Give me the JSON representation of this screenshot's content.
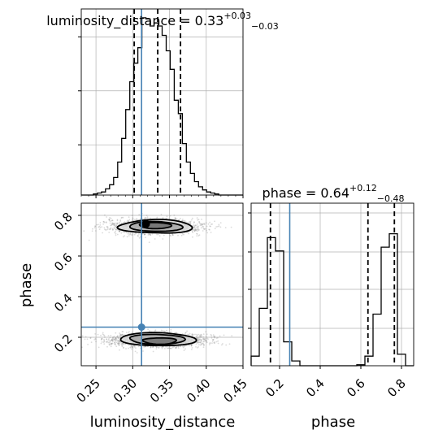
{
  "chart_data": {
    "type": "corner",
    "parameters": [
      "luminosity_distance",
      "phase"
    ],
    "truths": {
      "luminosity_distance": 0.312,
      "phase": 0.25
    },
    "grid": true,
    "panels": {
      "hist_luminosity_distance": {
        "type": "histogram",
        "title": {
          "prefix": "luminosity_distance = 0.33",
          "upper": "+0.03",
          "lower": "−0.03"
        },
        "quantiles": [
          0.302,
          0.334,
          0.365
        ],
        "xlim": [
          0.23,
          0.45
        ],
        "bin_edges": [
          0.23,
          0.2355,
          0.241,
          0.2465,
          0.252,
          0.2575,
          0.263,
          0.2685,
          0.274,
          0.2795,
          0.285,
          0.2905,
          0.296,
          0.3015,
          0.307,
          0.3125,
          0.318,
          0.3235,
          0.329,
          0.3345,
          0.34,
          0.3455,
          0.351,
          0.3565,
          0.362,
          0.3675,
          0.373,
          0.3785,
          0.384,
          0.3895,
          0.395,
          0.4005,
          0.406,
          0.4115,
          0.417,
          0.4225,
          0.428,
          0.4335,
          0.439,
          0.4445,
          0.45
        ],
        "counts": [
          0,
          0,
          0,
          1,
          2,
          3,
          6,
          10,
          17,
          32,
          55,
          83,
          110,
          128,
          143,
          172,
          171,
          164,
          167,
          164,
          155,
          140,
          122,
          92,
          79,
          50,
          32,
          21,
          13,
          8,
          5,
          3,
          2,
          1,
          0,
          0,
          0,
          0,
          0,
          0
        ]
      },
      "hist_phase": {
        "type": "histogram",
        "title": {
          "prefix": "phase = 0.64",
          "upper": "+0.12",
          "lower": "−0.48"
        },
        "quantiles": [
          0.155,
          0.635,
          0.765
        ],
        "xlim": [
          0.06,
          0.86
        ],
        "ylim_max": 170,
        "bin_edges": [
          0.06,
          0.1,
          0.14,
          0.18,
          0.22,
          0.26,
          0.3,
          0.34,
          0.38,
          0.42,
          0.46,
          0.5,
          0.54,
          0.58,
          0.62,
          0.66,
          0.7,
          0.74,
          0.78,
          0.82,
          0.86
        ],
        "counts": [
          10,
          60,
          134,
          120,
          25,
          5,
          0,
          0,
          0,
          0,
          0,
          0,
          0,
          1,
          10,
          54,
          124,
          138,
          12,
          0
        ]
      },
      "joint": {
        "type": "2d-density",
        "xlabel": "luminosity_distance",
        "ylabel": "phase",
        "xlim": [
          0.23,
          0.45
        ],
        "ylim": [
          0.06,
          0.86
        ],
        "xticks": [
          "0.25",
          "0.30",
          "0.35",
          "0.40",
          "0.45"
        ],
        "yticks": [
          "0.2",
          "0.4",
          "0.6",
          "0.8"
        ],
        "clusters": [
          {
            "center": [
              0.33,
              0.745
            ],
            "spread": [
              0.033,
              0.035
            ],
            "points": 1400
          },
          {
            "center": [
              0.332,
              0.185
            ],
            "spread": [
              0.034,
              0.033
            ],
            "points": 1600
          }
        ],
        "contour_levels": [
          [
            {
              "cx": 0.33,
              "cy": 0.745,
              "rx": 0.048,
              "ry": 0.063
            },
            {
              "cx": 0.332,
              "cy": 0.19,
              "rx": 0.05,
              "ry": 0.06
            }
          ],
          [
            {
              "cx": 0.33,
              "cy": 0.745,
              "rx": 0.035,
              "ry": 0.045
            },
            {
              "cx": 0.332,
              "cy": 0.19,
              "rx": 0.038,
              "ry": 0.044
            }
          ],
          [
            {
              "cx": 0.33,
              "cy": 0.75,
              "rx": 0.022,
              "ry": 0.027
            },
            {
              "cx": 0.336,
              "cy": 0.182,
              "rx": 0.024,
              "ry": 0.027
            }
          ]
        ],
        "peak_marker": [
          0.318,
          0.758
        ]
      },
      "phase_axis": {
        "xlabel": "phase",
        "xticks": [
          "0.2",
          "0.4",
          "0.6",
          "0.8"
        ]
      }
    },
    "colors": {
      "truth": "#4682b4",
      "hist": "#000000",
      "grid": "#b0b0b0",
      "scatter": "#7f7f7f"
    }
  }
}
